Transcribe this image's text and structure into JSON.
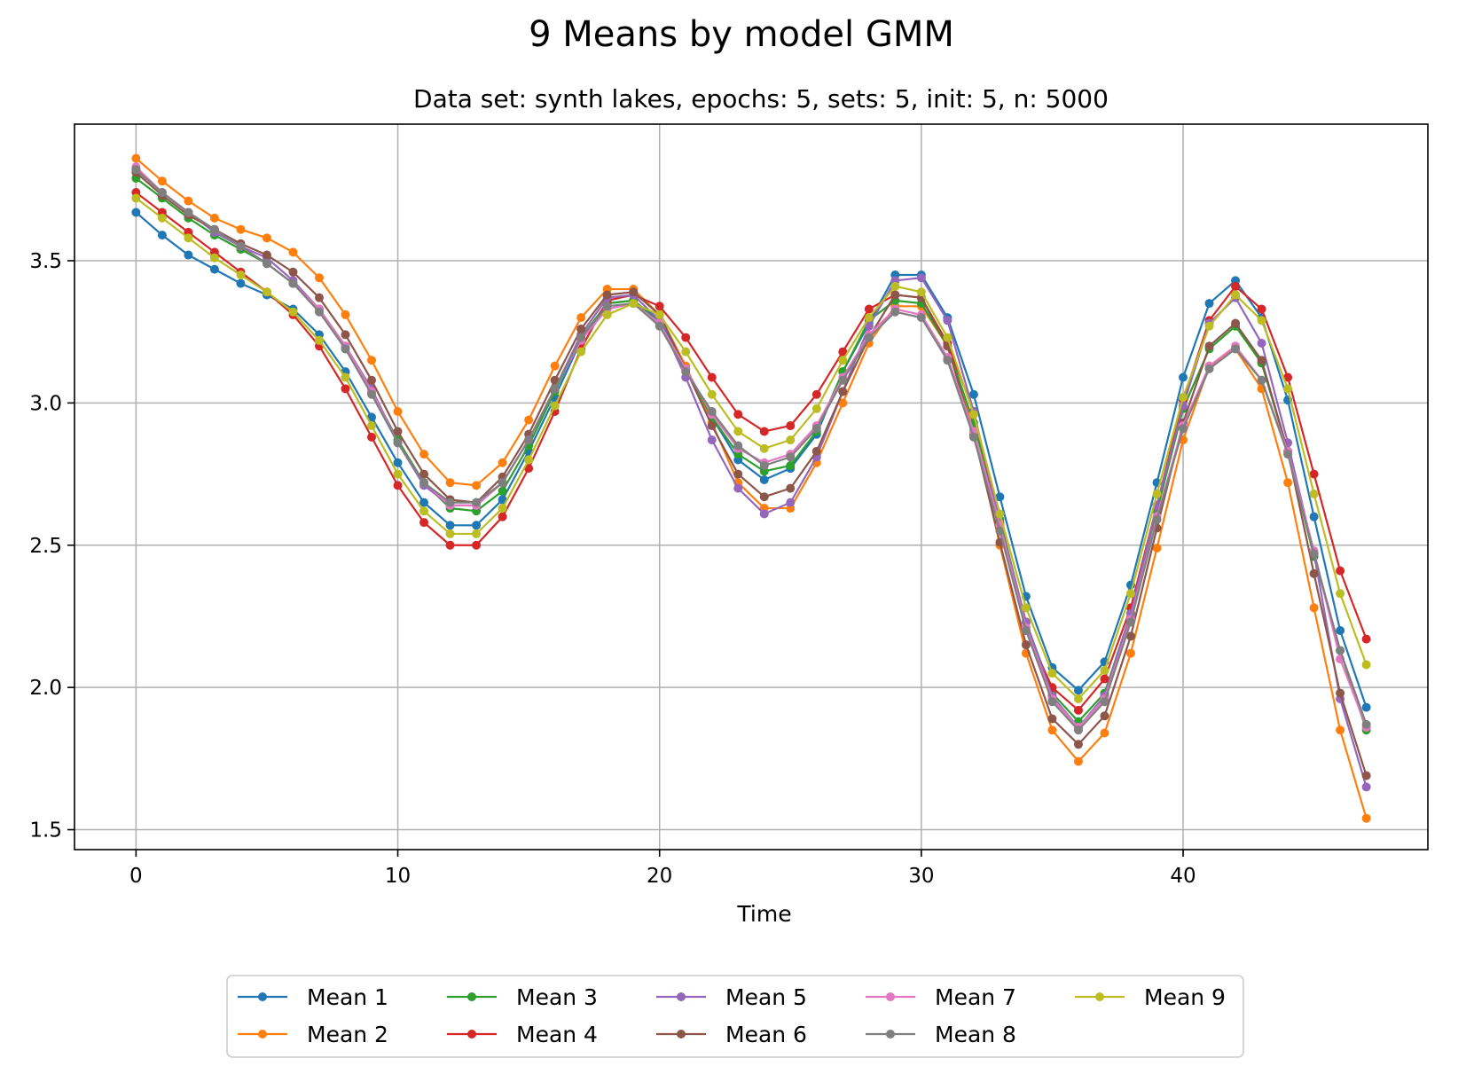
{
  "chart_data": {
    "type": "line",
    "title": "9 Means by model GMM",
    "subtitle": "Data set: synth lakes, epochs: 5, sets: 5, init: 5, n: 5000",
    "xlabel": "Time",
    "ylabel": "",
    "xlim": [
      -2.35,
      49.35
    ],
    "ylim": [
      1.43,
      3.98
    ],
    "xticks": [
      0,
      10,
      20,
      30,
      40
    ],
    "yticks": [
      1.5,
      2.0,
      2.5,
      3.0,
      3.5
    ],
    "xtick_labels": [
      "0",
      "10",
      "20",
      "30",
      "40"
    ],
    "ytick_labels": [
      "1.5",
      "2.0",
      "2.5",
      "3.0",
      "3.5"
    ],
    "grid": true,
    "legend_position": "bottom-center",
    "legend_columns": 5,
    "x": [
      0,
      1,
      2,
      3,
      4,
      5,
      6,
      7,
      8,
      9,
      10,
      11,
      12,
      13,
      14,
      15,
      16,
      17,
      18,
      19,
      20,
      21,
      22,
      23,
      24,
      25,
      26,
      27,
      28,
      29,
      30,
      31,
      32,
      33,
      34,
      35,
      36,
      37,
      38,
      39,
      40,
      41,
      42,
      43,
      44,
      45,
      46,
      47
    ],
    "series": [
      {
        "name": "Mean 1",
        "color": "#1f77b4",
        "values": [
          3.67,
          3.59,
          3.52,
          3.47,
          3.42,
          3.38,
          3.33,
          3.24,
          3.11,
          2.95,
          2.79,
          2.65,
          2.57,
          2.57,
          2.66,
          2.83,
          3.02,
          3.22,
          3.35,
          3.36,
          3.29,
          3.12,
          2.95,
          2.8,
          2.73,
          2.77,
          2.89,
          3.11,
          3.28,
          3.45,
          3.45,
          3.3,
          3.03,
          2.67,
          2.32,
          2.07,
          1.99,
          2.09,
          2.36,
          2.72,
          3.09,
          3.35,
          3.43,
          3.3,
          3.01,
          2.6,
          2.2,
          1.93
        ]
      },
      {
        "name": "Mean 2",
        "color": "#ff7f0e",
        "values": [
          3.86,
          3.78,
          3.71,
          3.65,
          3.61,
          3.58,
          3.53,
          3.44,
          3.31,
          3.15,
          2.97,
          2.82,
          2.72,
          2.71,
          2.79,
          2.94,
          3.13,
          3.3,
          3.4,
          3.4,
          3.31,
          3.13,
          2.93,
          2.72,
          2.63,
          2.63,
          2.79,
          3.0,
          3.21,
          3.34,
          3.34,
          3.2,
          2.91,
          2.5,
          2.12,
          1.85,
          1.74,
          1.84,
          2.12,
          2.49,
          2.87,
          3.13,
          3.19,
          3.05,
          2.72,
          2.28,
          1.85,
          1.54
        ]
      },
      {
        "name": "Mean 3",
        "color": "#2ca02c",
        "values": [
          3.79,
          3.72,
          3.65,
          3.59,
          3.54,
          3.49,
          3.42,
          3.33,
          3.19,
          3.04,
          2.87,
          2.72,
          2.63,
          2.62,
          2.69,
          2.85,
          3.04,
          3.23,
          3.35,
          3.36,
          3.28,
          3.12,
          2.95,
          2.82,
          2.76,
          2.78,
          2.9,
          3.11,
          3.29,
          3.36,
          3.35,
          3.2,
          2.93,
          2.59,
          2.23,
          1.98,
          1.88,
          1.98,
          2.26,
          2.62,
          2.98,
          3.19,
          3.27,
          3.14,
          2.83,
          2.46,
          2.13,
          1.85
        ]
      },
      {
        "name": "Mean 4",
        "color": "#d62728",
        "values": [
          3.74,
          3.67,
          3.6,
          3.53,
          3.46,
          3.39,
          3.31,
          3.2,
          3.05,
          2.88,
          2.71,
          2.58,
          2.5,
          2.5,
          2.6,
          2.77,
          2.97,
          3.19,
          3.36,
          3.38,
          3.34,
          3.23,
          3.09,
          2.96,
          2.9,
          2.92,
          3.03,
          3.18,
          3.33,
          3.38,
          3.37,
          3.21,
          2.97,
          2.57,
          2.2,
          2.0,
          1.92,
          2.03,
          2.28,
          2.64,
          3.01,
          3.29,
          3.41,
          3.33,
          3.09,
          2.75,
          2.41,
          2.17
        ]
      },
      {
        "name": "Mean 5",
        "color": "#9467bd",
        "values": [
          3.82,
          3.74,
          3.67,
          3.6,
          3.55,
          3.51,
          3.43,
          3.33,
          3.2,
          3.05,
          2.86,
          2.71,
          2.64,
          2.64,
          2.72,
          2.87,
          3.05,
          3.24,
          3.37,
          3.38,
          3.29,
          3.09,
          2.87,
          2.7,
          2.61,
          2.65,
          2.81,
          3.04,
          3.27,
          3.43,
          3.44,
          3.29,
          2.97,
          2.58,
          2.23,
          1.97,
          1.86,
          1.97,
          2.26,
          2.64,
          2.99,
          3.28,
          3.37,
          3.21,
          2.86,
          2.47,
          1.96,
          1.65
        ]
      },
      {
        "name": "Mean 6",
        "color": "#8c564b",
        "values": [
          3.81,
          3.73,
          3.66,
          3.61,
          3.56,
          3.52,
          3.46,
          3.37,
          3.24,
          3.08,
          2.9,
          2.75,
          2.66,
          2.65,
          2.74,
          2.89,
          3.08,
          3.26,
          3.38,
          3.39,
          3.31,
          3.12,
          2.92,
          2.75,
          2.67,
          2.7,
          2.83,
          3.04,
          3.23,
          3.38,
          3.37,
          3.2,
          2.89,
          2.51,
          2.15,
          1.89,
          1.8,
          1.9,
          2.18,
          2.56,
          2.93,
          3.2,
          3.28,
          3.15,
          2.83,
          2.4,
          1.98,
          1.69
        ]
      },
      {
        "name": "Mean 7",
        "color": "#e377c2",
        "values": [
          3.83,
          3.74,
          3.67,
          3.61,
          3.55,
          3.49,
          3.42,
          3.33,
          3.2,
          3.04,
          2.86,
          2.72,
          2.64,
          2.64,
          2.72,
          2.87,
          3.05,
          3.22,
          3.33,
          3.35,
          3.28,
          3.12,
          2.96,
          2.84,
          2.79,
          2.82,
          2.92,
          3.09,
          3.24,
          3.33,
          3.31,
          3.16,
          2.9,
          2.57,
          2.21,
          1.96,
          1.86,
          1.96,
          2.24,
          2.6,
          2.92,
          3.13,
          3.2,
          3.08,
          2.83,
          2.48,
          2.1,
          1.86
        ]
      },
      {
        "name": "Mean 8",
        "color": "#7f7f7f",
        "values": [
          3.82,
          3.74,
          3.67,
          3.61,
          3.55,
          3.49,
          3.42,
          3.32,
          3.19,
          3.03,
          2.86,
          2.72,
          2.65,
          2.65,
          2.72,
          2.87,
          3.05,
          3.23,
          3.34,
          3.35,
          3.27,
          3.11,
          2.97,
          2.85,
          2.78,
          2.81,
          2.91,
          3.08,
          3.23,
          3.32,
          3.3,
          3.15,
          2.88,
          2.55,
          2.2,
          1.95,
          1.85,
          1.95,
          2.23,
          2.59,
          2.91,
          3.12,
          3.19,
          3.08,
          2.82,
          2.47,
          2.13,
          1.87
        ]
      },
      {
        "name": "Mean 9",
        "color": "#bcbd22",
        "values": [
          3.72,
          3.65,
          3.58,
          3.51,
          3.45,
          3.39,
          3.32,
          3.22,
          3.09,
          2.92,
          2.75,
          2.62,
          2.54,
          2.54,
          2.63,
          2.8,
          2.99,
          3.18,
          3.31,
          3.35,
          3.31,
          3.18,
          3.03,
          2.9,
          2.84,
          2.87,
          2.98,
          3.15,
          3.3,
          3.41,
          3.39,
          3.23,
          2.96,
          2.61,
          2.28,
          2.05,
          1.96,
          2.06,
          2.33,
          2.68,
          3.02,
          3.27,
          3.38,
          3.29,
          3.05,
          2.68,
          2.33,
          2.08
        ]
      }
    ]
  }
}
